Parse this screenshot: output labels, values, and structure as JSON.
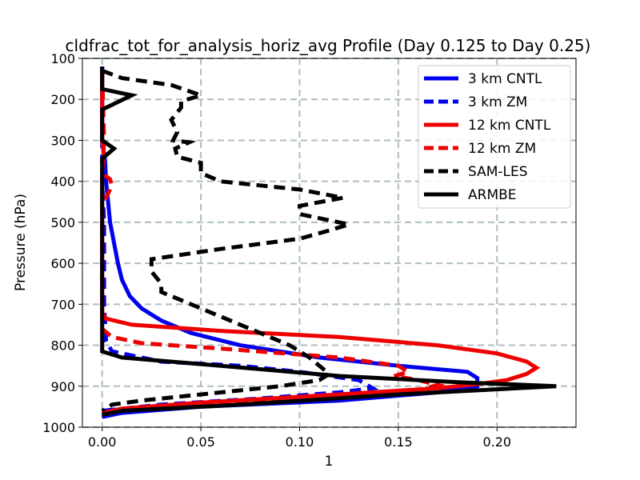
{
  "chart_data": {
    "type": "line",
    "title": "cldfrac_tot_for_analysis_horiz_avg Profile (Day 0.125 to Day 0.25)",
    "xlabel": "1",
    "ylabel": "Pressure (hPa)",
    "xlim": [
      -0.01,
      0.24
    ],
    "ylim": [
      1000,
      100
    ],
    "x_ticks": [
      0.0,
      0.05,
      0.1,
      0.15,
      0.2
    ],
    "x_tick_labels": [
      "0.00",
      "0.05",
      "0.10",
      "0.15",
      "0.20"
    ],
    "y_ticks": [
      100,
      200,
      300,
      400,
      500,
      600,
      700,
      800,
      900,
      1000
    ],
    "y_tick_labels": [
      "100",
      "200",
      "300",
      "400",
      "500",
      "600",
      "700",
      "800",
      "900",
      "1000"
    ],
    "grid": true,
    "legend_position": "top-right",
    "series": [
      {
        "name": "3 km CNTL",
        "color": "#0000ee",
        "dash": false,
        "points": [
          [
            0.0,
            120
          ],
          [
            0.0,
            300
          ],
          [
            0.0015,
            350
          ],
          [
            0.002,
            400
          ],
          [
            0.003,
            450
          ],
          [
            0.004,
            500
          ],
          [
            0.006,
            550
          ],
          [
            0.008,
            600
          ],
          [
            0.01,
            640
          ],
          [
            0.014,
            680
          ],
          [
            0.02,
            710
          ],
          [
            0.03,
            740
          ],
          [
            0.045,
            770
          ],
          [
            0.07,
            800
          ],
          [
            0.11,
            830
          ],
          [
            0.15,
            850
          ],
          [
            0.185,
            865
          ],
          [
            0.19,
            880
          ],
          [
            0.19,
            900
          ],
          [
            0.17,
            915
          ],
          [
            0.12,
            935
          ],
          [
            0.05,
            950
          ],
          [
            0.01,
            965
          ],
          [
            0.0,
            975
          ]
        ]
      },
      {
        "name": "3 km ZM",
        "color": "#0000ee",
        "dash": true,
        "points": [
          [
            0.0,
            120
          ],
          [
            0.0,
            400
          ],
          [
            0.001,
            500
          ],
          [
            0.001,
            700
          ],
          [
            0.002,
            790
          ],
          [
            0.005,
            815
          ],
          [
            0.03,
            840
          ],
          [
            0.07,
            850
          ],
          [
            0.1,
            865
          ],
          [
            0.13,
            885
          ],
          [
            0.137,
            905
          ],
          [
            0.12,
            915
          ],
          [
            0.08,
            930
          ],
          [
            0.03,
            945
          ],
          [
            0.0,
            960
          ]
        ]
      },
      {
        "name": "12 km CNTL",
        "color": "#ee0000",
        "dash": false,
        "points": [
          [
            0.0,
            130
          ],
          [
            0.0,
            300
          ],
          [
            0.001,
            340
          ],
          [
            0.0,
            370
          ],
          [
            0.0,
            720
          ],
          [
            0.002,
            735
          ],
          [
            0.015,
            750
          ],
          [
            0.06,
            765
          ],
          [
            0.12,
            780
          ],
          [
            0.17,
            800
          ],
          [
            0.2,
            820
          ],
          [
            0.215,
            840
          ],
          [
            0.22,
            855
          ],
          [
            0.215,
            870
          ],
          [
            0.205,
            885
          ],
          [
            0.19,
            895
          ],
          [
            0.17,
            905
          ],
          [
            0.12,
            920
          ],
          [
            0.05,
            940
          ],
          [
            0.01,
            955
          ],
          [
            0.0,
            965
          ]
        ]
      },
      {
        "name": "12 km ZM",
        "color": "#ee0000",
        "dash": true,
        "points": [
          [
            0.0,
            130
          ],
          [
            0.001,
            300
          ],
          [
            0.0,
            380
          ],
          [
            0.004,
            395
          ],
          [
            0.005,
            410
          ],
          [
            0.003,
            430
          ],
          [
            0.0,
            460
          ],
          [
            0.0,
            760
          ],
          [
            0.005,
            780
          ],
          [
            0.02,
            795
          ],
          [
            0.06,
            808
          ],
          [
            0.12,
            830
          ],
          [
            0.15,
            850
          ],
          [
            0.155,
            865
          ],
          [
            0.148,
            875
          ],
          [
            0.16,
            885
          ],
          [
            0.17,
            897
          ],
          [
            0.16,
            910
          ],
          [
            0.12,
            925
          ],
          [
            0.05,
            940
          ],
          [
            0.01,
            955
          ],
          [
            0.0,
            965
          ]
        ]
      },
      {
        "name": "SAM-LES",
        "color": "#000000",
        "dash": true,
        "points": [
          [
            0.0,
            130
          ],
          [
            0.01,
            148
          ],
          [
            0.035,
            165
          ],
          [
            0.05,
            190
          ],
          [
            0.04,
            205
          ],
          [
            0.04,
            220
          ],
          [
            0.035,
            250
          ],
          [
            0.038,
            280
          ],
          [
            0.036,
            300
          ],
          [
            0.044,
            305
          ],
          [
            0.037,
            320
          ],
          [
            0.038,
            340
          ],
          [
            0.05,
            355
          ],
          [
            0.05,
            380
          ],
          [
            0.06,
            400
          ],
          [
            0.1,
            420
          ],
          [
            0.122,
            440
          ],
          [
            0.1,
            460
          ],
          [
            0.1,
            480
          ],
          [
            0.125,
            505
          ],
          [
            0.115,
            520
          ],
          [
            0.1,
            540
          ],
          [
            0.06,
            565
          ],
          [
            0.025,
            590
          ],
          [
            0.025,
            620
          ],
          [
            0.03,
            650
          ],
          [
            0.03,
            670
          ],
          [
            0.04,
            690
          ],
          [
            0.05,
            710
          ],
          [
            0.065,
            740
          ],
          [
            0.08,
            770
          ],
          [
            0.095,
            800
          ],
          [
            0.105,
            830
          ],
          [
            0.11,
            850
          ],
          [
            0.115,
            870
          ],
          [
            0.11,
            885
          ],
          [
            0.09,
            900
          ],
          [
            0.06,
            915
          ],
          [
            0.02,
            935
          ],
          [
            0.005,
            945
          ],
          [
            0.0,
            960
          ]
        ]
      },
      {
        "name": "ARMBE",
        "color": "#000000",
        "dash": false,
        "points": [
          [
            0.0,
            120
          ],
          [
            0.0,
            175
          ],
          [
            0.015,
            190
          ],
          [
            0.0,
            225
          ],
          [
            0.0,
            300
          ],
          [
            0.006,
            320
          ],
          [
            0.0,
            345
          ],
          [
            0.0,
            400
          ],
          [
            0.0,
            815
          ],
          [
            0.01,
            830
          ],
          [
            0.06,
            850
          ],
          [
            0.12,
            875
          ],
          [
            0.18,
            890
          ],
          [
            0.23,
            900
          ],
          [
            0.15,
            920
          ],
          [
            0.07,
            945
          ],
          [
            0.01,
            960
          ],
          [
            0.0,
            970
          ]
        ]
      }
    ]
  }
}
